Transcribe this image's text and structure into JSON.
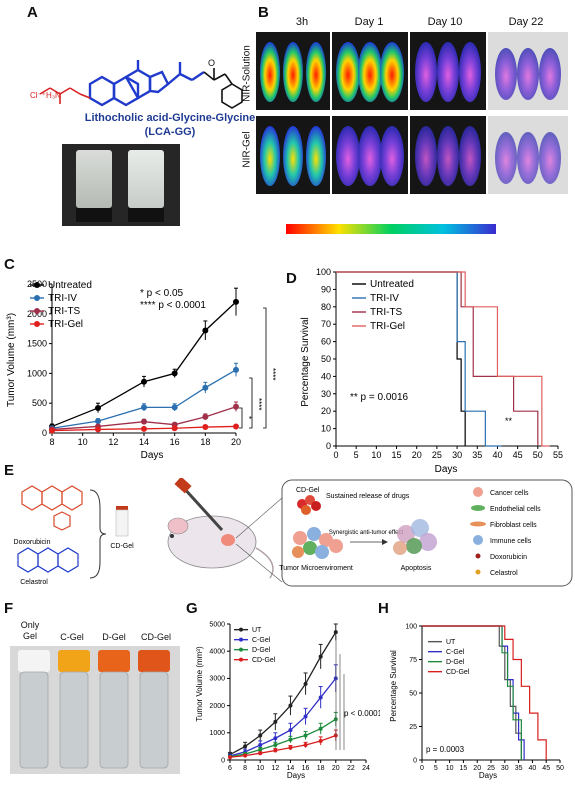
{
  "panels": {
    "A": {
      "letter": "A",
      "counter_ion": "Cl⁻⁺H₃N",
      "compound_name": "Lithocholic acid-Glycine-Glycine",
      "compound_abbr": "(LCA-GG)"
    },
    "B": {
      "letter": "B",
      "timepoints": [
        "3h",
        "Day 1",
        "Day 10",
        "Day 22"
      ],
      "rows": [
        "NIR-Solution",
        "NIR-Gel"
      ]
    },
    "C": {
      "letter": "C",
      "ylabel": "Tumor Volume (mm³)",
      "xlabel": "Days",
      "legend": [
        "Untreated",
        "TRI-IV",
        "TRI-TS",
        "TRI-Gel"
      ],
      "sig1": "* p < 0.05",
      "sig2": "**** p < 0.0001",
      "brackets": [
        "****",
        "****",
        "*"
      ]
    },
    "D": {
      "letter": "D",
      "ylabel": "Percentage Survival",
      "xlabel": "Days",
      "legend": [
        "Untreated",
        "TRI-IV",
        "TRI-TS",
        "TRI-Gel"
      ],
      "pvalue": "** p = 0.0016",
      "star": "**"
    },
    "E": {
      "letter": "E",
      "drug1": "Doxorubicin",
      "drug2": "Celastrol",
      "vial_label": "CD-Gel",
      "cdgel": "CD-Gel",
      "release": "Sustained release of drugs",
      "micro": "Tumor Microenviroment",
      "synergy": "Synergistic anti-tumor effect",
      "apoptosis": "Apoptosis",
      "legend": [
        "Cancer cells",
        "Endothelial cells",
        "Fibroblast cells",
        "Immune cells",
        "Doxorubicin",
        "Celastrol"
      ]
    },
    "F": {
      "letter": "F",
      "vials": [
        "Only Gel",
        "C-Gel",
        "D-Gel",
        "CD-Gel"
      ]
    },
    "G": {
      "letter": "G",
      "ylabel": "Tumor Volume (mm³)",
      "xlabel": "Days",
      "legend": [
        "UT",
        "C-Gel",
        "D-Gel",
        "CD-Gel"
      ],
      "pvalue": "p < 0.0001"
    },
    "H": {
      "letter": "H",
      "ylabel": "Percentage Survival",
      "xlabel": "Days",
      "legend": [
        "UT",
        "C-Gel",
        "D-Gel",
        "CD-Gel"
      ],
      "pvalue": "p = 0.0003"
    }
  },
  "chart_data": [
    {
      "id": "C",
      "type": "line",
      "xlabel": "Days",
      "ylabel": "Tumor Volume (mm³)",
      "x": [
        8,
        11,
        14,
        16,
        18,
        20
      ],
      "xlim": [
        8,
        20
      ],
      "xticks": [
        8,
        10,
        12,
        14,
        16,
        18,
        20
      ],
      "ylim": [
        0,
        2500
      ],
      "yticks": [
        0,
        500,
        1000,
        1500,
        2000,
        2500
      ],
      "series": [
        {
          "name": "Untreated",
          "color": "#000000",
          "values": [
            110,
            420,
            860,
            1000,
            1720,
            2200
          ],
          "err": [
            40,
            80,
            90,
            70,
            160,
            230
          ]
        },
        {
          "name": "TRI-IV",
          "color": "#2a6fb0",
          "values": [
            80,
            200,
            430,
            430,
            760,
            1060
          ],
          "err": [
            30,
            40,
            60,
            60,
            90,
            110
          ]
        },
        {
          "name": "TRI-TS",
          "color": "#a0304a",
          "values": [
            60,
            110,
            190,
            140,
            270,
            440
          ],
          "err": [
            20,
            30,
            40,
            30,
            50,
            80
          ]
        },
        {
          "name": "TRI-Gel",
          "color": "#e0201e",
          "values": [
            40,
            60,
            70,
            80,
            100,
            110
          ],
          "err": [
            10,
            15,
            15,
            20,
            20,
            25
          ]
        }
      ]
    },
    {
      "id": "D",
      "type": "line",
      "xlabel": "Days",
      "ylabel": "Percentage Survival",
      "xlim": [
        0,
        55
      ],
      "xticks": [
        0,
        5,
        10,
        15,
        20,
        25,
        30,
        35,
        40,
        45,
        50,
        55
      ],
      "ylim": [
        0,
        100
      ],
      "yticks": [
        0,
        10,
        20,
        30,
        40,
        50,
        60,
        70,
        80,
        90,
        100
      ],
      "series": [
        {
          "name": "Untreated",
          "color": "#000000",
          "steps": [
            [
              0,
              100
            ],
            [
              30,
              100
            ],
            [
              30,
              50
            ],
            [
              31,
              50
            ],
            [
              31,
              20
            ],
            [
              32,
              20
            ],
            [
              32,
              0
            ]
          ]
        },
        {
          "name": "TRI-IV",
          "color": "#2a6fb0",
          "steps": [
            [
              0,
              100
            ],
            [
              30,
              100
            ],
            [
              30,
              60
            ],
            [
              32,
              60
            ],
            [
              32,
              20
            ],
            [
              37,
              20
            ],
            [
              37,
              0
            ],
            [
              41,
              0
            ]
          ]
        },
        {
          "name": "TRI-TS",
          "color": "#a0304a",
          "steps": [
            [
              0,
              100
            ],
            [
              31,
              100
            ],
            [
              31,
              80
            ],
            [
              34,
              80
            ],
            [
              34,
              40
            ],
            [
              44,
              40
            ],
            [
              44,
              20
            ],
            [
              50,
              20
            ],
            [
              50,
              0
            ]
          ]
        },
        {
          "name": "TRI-Gel",
          "color": "#e06060",
          "steps": [
            [
              0,
              100
            ],
            [
              32,
              100
            ],
            [
              32,
              80
            ],
            [
              40,
              80
            ],
            [
              40,
              40
            ],
            [
              51,
              40
            ],
            [
              51,
              0
            ],
            [
              53,
              0
            ]
          ]
        }
      ]
    },
    {
      "id": "G",
      "type": "line",
      "xlabel": "Days",
      "ylabel": "Tumor Volume (mm³)",
      "x": [
        6,
        8,
        10,
        12,
        14,
        16,
        18,
        20
      ],
      "xlim": [
        6,
        24
      ],
      "xticks": [
        6,
        8,
        10,
        12,
        14,
        16,
        18,
        20,
        22,
        24
      ],
      "ylim": [
        0,
        5000
      ],
      "yticks": [
        0,
        1000,
        2000,
        3000,
        4000,
        5000
      ],
      "series": [
        {
          "name": "UT",
          "color": "#222222",
          "values": [
            200,
            500,
            900,
            1400,
            2000,
            2800,
            3800,
            4700
          ],
          "err": [
            80,
            150,
            200,
            300,
            350,
            400,
            450,
            300
          ]
        },
        {
          "name": "C-Gel",
          "color": "#3030c8",
          "values": [
            150,
            300,
            550,
            800,
            1100,
            1600,
            2300,
            3000
          ],
          "err": [
            60,
            100,
            150,
            200,
            250,
            300,
            400,
            500
          ]
        },
        {
          "name": "D-Gel",
          "color": "#1e8a3c",
          "values": [
            120,
            220,
            380,
            550,
            750,
            900,
            1150,
            1500
          ],
          "err": [
            40,
            60,
            80,
            100,
            120,
            150,
            200,
            250
          ]
        },
        {
          "name": "CD-Gel",
          "color": "#d81e1e",
          "values": [
            100,
            160,
            250,
            350,
            450,
            550,
            700,
            900
          ],
          "err": [
            30,
            40,
            50,
            70,
            80,
            100,
            150,
            200
          ]
        }
      ]
    },
    {
      "id": "H",
      "type": "line",
      "xlabel": "Days",
      "ylabel": "Percentage Survival",
      "xlim": [
        0,
        50
      ],
      "xticks": [
        0,
        5,
        10,
        15,
        20,
        25,
        30,
        35,
        40,
        45,
        50
      ],
      "ylim": [
        0,
        100
      ],
      "yticks": [
        0,
        25,
        50,
        75,
        100
      ],
      "series": [
        {
          "name": "UT",
          "color": "#555555",
          "steps": [
            [
              0,
              100
            ],
            [
              28,
              100
            ],
            [
              28,
              85
            ],
            [
              30,
              85
            ],
            [
              30,
              60
            ],
            [
              32,
              60
            ],
            [
              32,
              40
            ],
            [
              34,
              40
            ],
            [
              34,
              20
            ],
            [
              36,
              20
            ],
            [
              36,
              0
            ]
          ]
        },
        {
          "name": "C-Gel",
          "color": "#3030c8",
          "steps": [
            [
              0,
              100
            ],
            [
              29,
              100
            ],
            [
              29,
              85
            ],
            [
              31,
              85
            ],
            [
              31,
              60
            ],
            [
              33,
              60
            ],
            [
              33,
              35
            ],
            [
              35,
              35
            ],
            [
              35,
              15
            ],
            [
              37,
              15
            ],
            [
              37,
              0
            ]
          ]
        },
        {
          "name": "D-Gel",
          "color": "#1e8a3c",
          "steps": [
            [
              0,
              100
            ],
            [
              29,
              100
            ],
            [
              29,
              80
            ],
            [
              31,
              80
            ],
            [
              31,
              55
            ],
            [
              33,
              55
            ],
            [
              33,
              30
            ],
            [
              36,
              30
            ],
            [
              36,
              0
            ]
          ]
        },
        {
          "name": "CD-Gel",
          "color": "#d81e1e",
          "steps": [
            [
              0,
              100
            ],
            [
              30,
              100
            ],
            [
              30,
              90
            ],
            [
              33,
              90
            ],
            [
              33,
              75
            ],
            [
              36,
              75
            ],
            [
              36,
              55
            ],
            [
              39,
              55
            ],
            [
              39,
              35
            ],
            [
              42,
              35
            ],
            [
              42,
              15
            ],
            [
              45,
              15
            ],
            [
              45,
              0
            ]
          ]
        }
      ]
    }
  ]
}
